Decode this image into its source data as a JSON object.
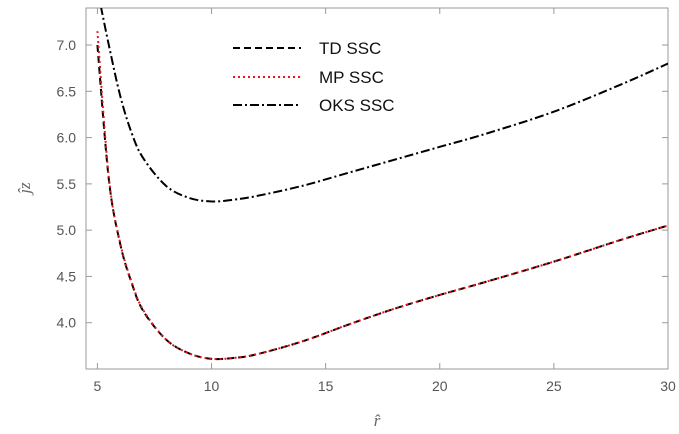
{
  "chart_data": {
    "type": "line",
    "title": "",
    "xlabel": "r̂",
    "ylabel": "ĵz",
    "xlim": [
      4.5,
      30
    ],
    "ylim": [
      3.5,
      7.4
    ],
    "xticks": [
      5,
      10,
      15,
      20,
      25,
      30
    ],
    "yticks": [
      4.0,
      4.5,
      5.0,
      5.5,
      6.0,
      6.5,
      7.0
    ],
    "xtick_labels": [
      "5",
      "10",
      "15",
      "20",
      "25",
      "30"
    ],
    "ytick_labels": [
      "4.0",
      "4.5",
      "5.0",
      "5.5",
      "6.0",
      "6.5",
      "7.0"
    ],
    "grid": false,
    "legend_position": "top-center",
    "x": [
      5,
      5.5,
      6,
      6.5,
      7,
      8,
      9,
      10,
      11,
      12,
      14,
      16,
      18,
      20,
      22,
      25,
      28,
      30
    ],
    "series": [
      {
        "name": "TD SSC",
        "color": "#000000",
        "dash": "dashed",
        "values": [
          7.0,
          5.55,
          4.85,
          4.43,
          4.13,
          3.82,
          3.67,
          3.61,
          3.62,
          3.66,
          3.8,
          3.98,
          4.15,
          4.3,
          4.44,
          4.66,
          4.9,
          5.05
        ]
      },
      {
        "name": "MP SSC",
        "color": "#e8141c",
        "dash": "dotted",
        "values": [
          7.15,
          5.57,
          4.86,
          4.44,
          4.14,
          3.82,
          3.67,
          3.61,
          3.62,
          3.66,
          3.8,
          3.98,
          4.15,
          4.3,
          4.44,
          4.66,
          4.9,
          5.05
        ]
      },
      {
        "name": "OKS SSC",
        "color": "#000000",
        "dash": "dash-dot",
        "values": [
          7.6,
          7.0,
          6.45,
          6.05,
          5.78,
          5.48,
          5.35,
          5.31,
          5.33,
          5.37,
          5.48,
          5.62,
          5.76,
          5.9,
          6.04,
          6.28,
          6.58,
          6.8
        ]
      }
    ]
  }
}
